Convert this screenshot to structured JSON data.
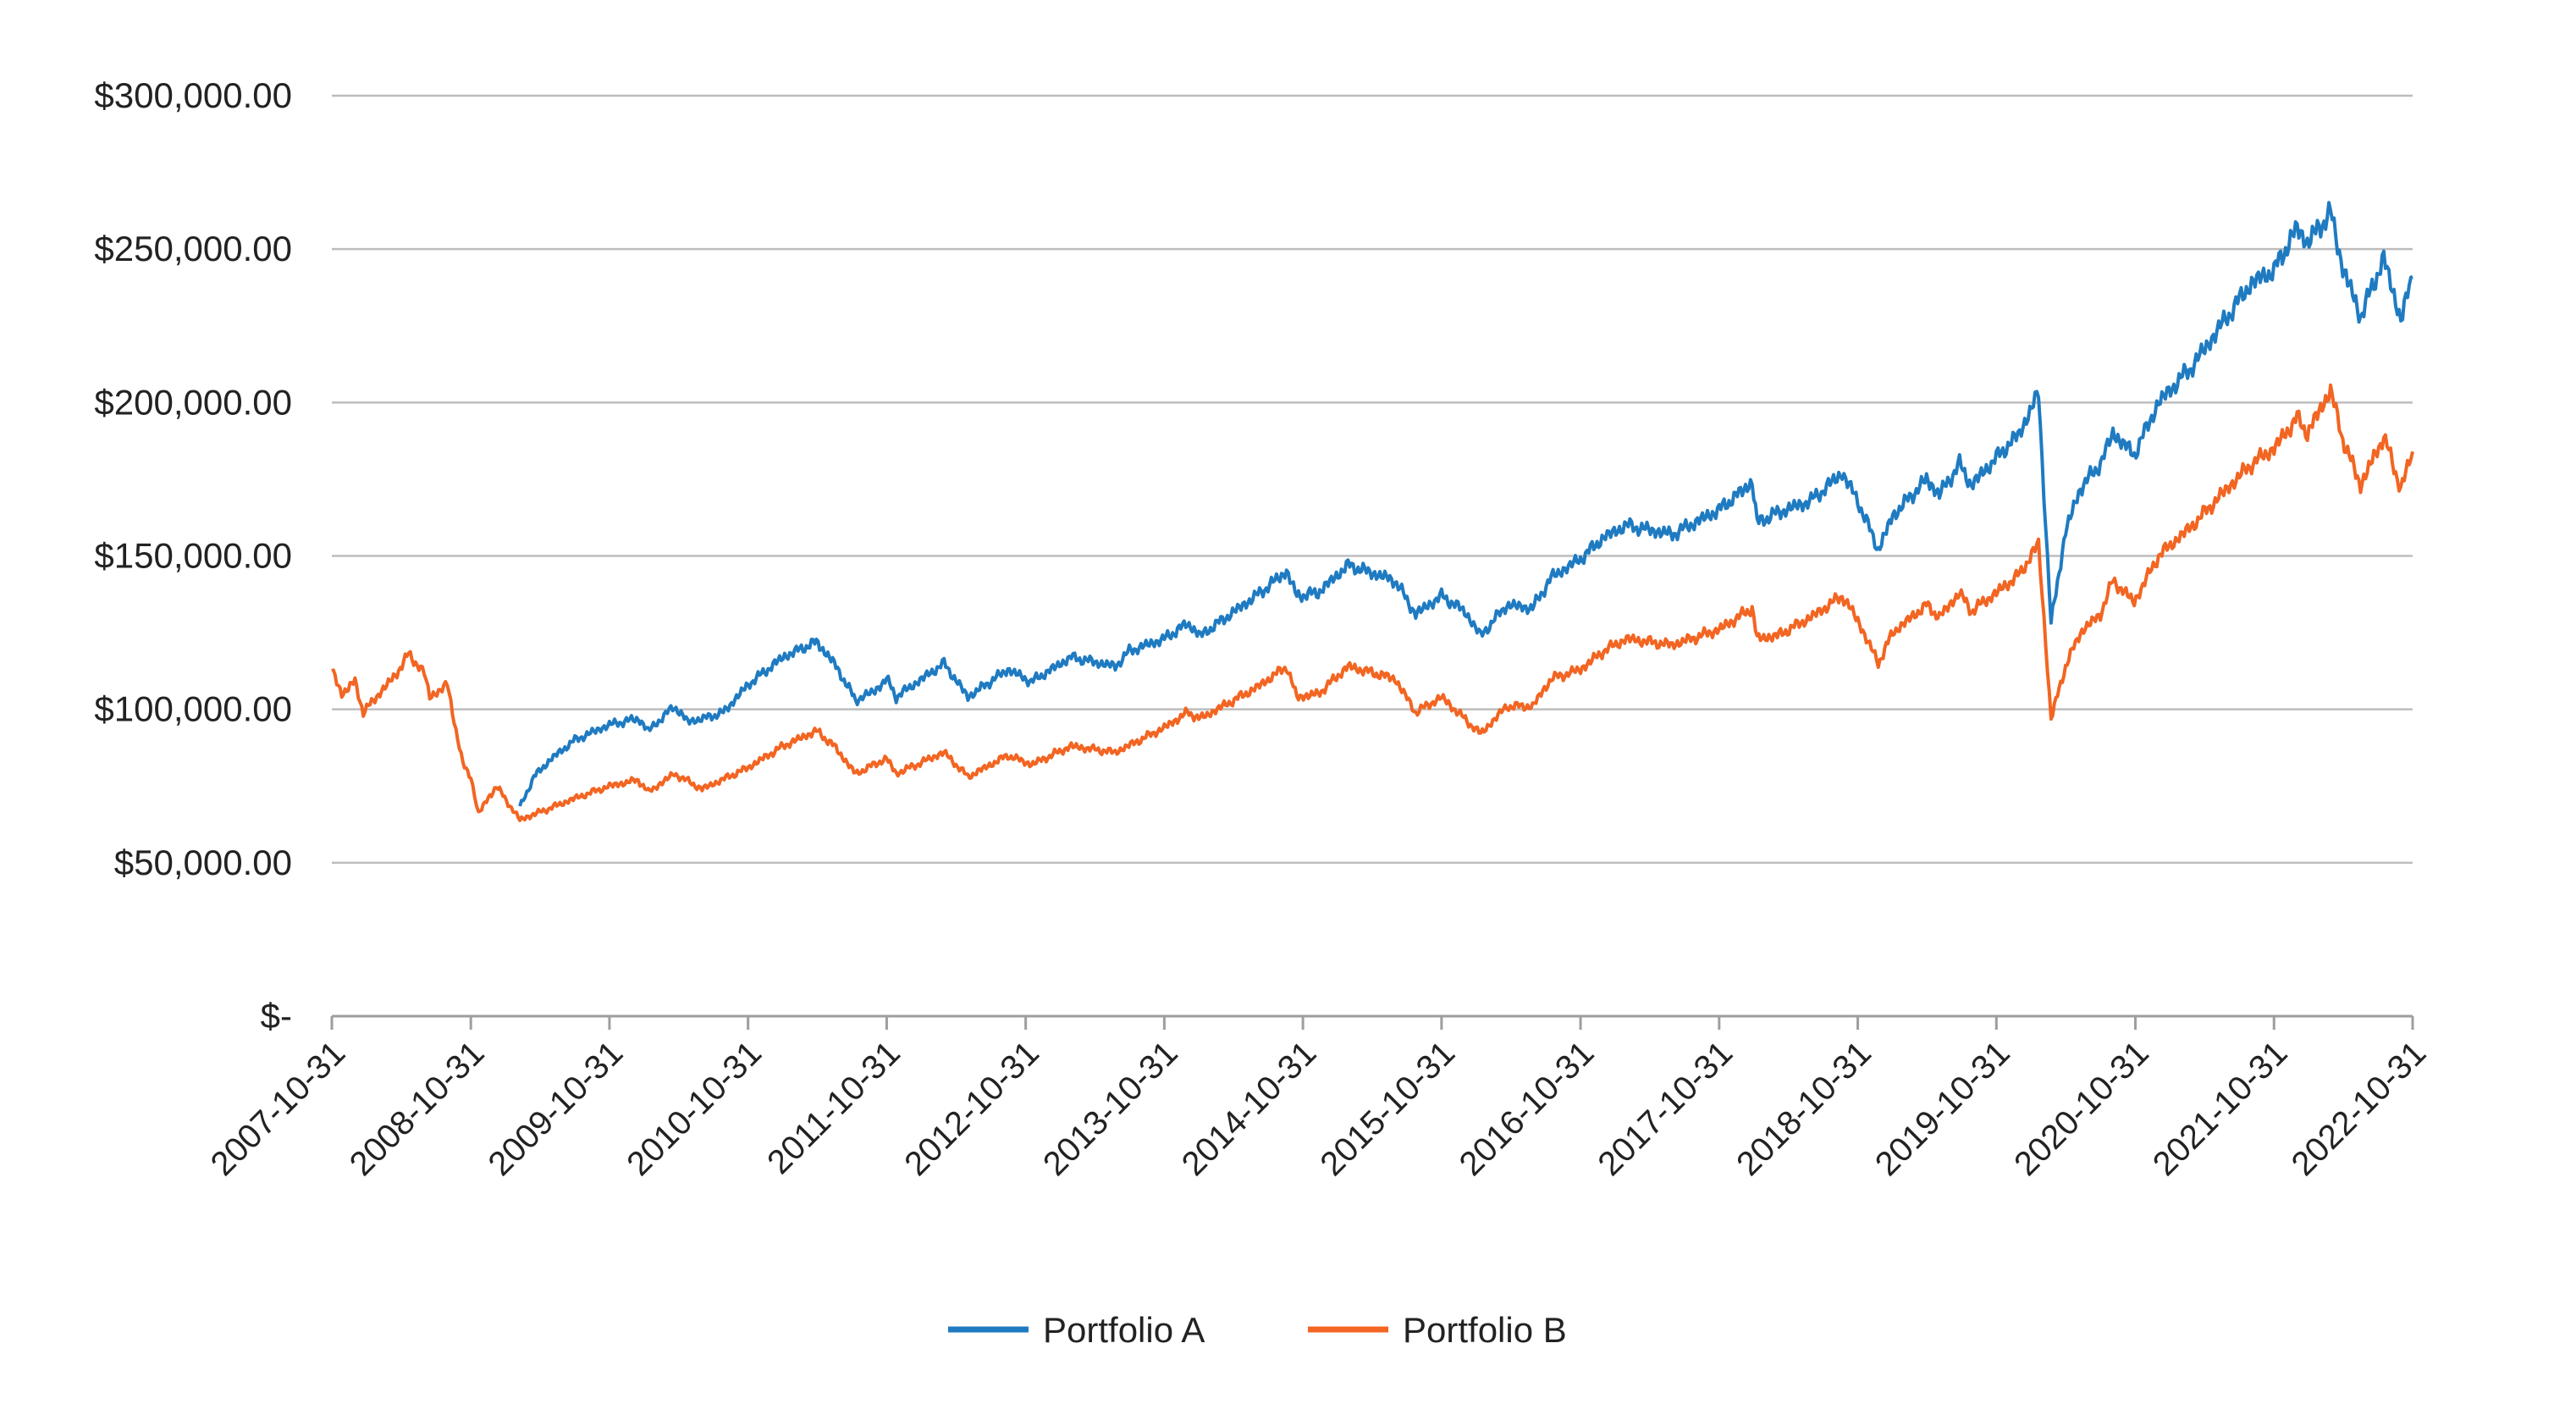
{
  "chart_data": {
    "type": "line",
    "title": "",
    "xlabel": "",
    "ylabel": "",
    "ylim": [
      0,
      300000
    ],
    "xlim": [
      "2007-10-31",
      "2022-10-31"
    ],
    "grid": true,
    "legend_position": "bottom-center",
    "y_ticks": [
      {
        "value": 0,
        "label": "$-"
      },
      {
        "value": 50000,
        "label": "$50,000.00"
      },
      {
        "value": 100000,
        "label": "$100,000.00"
      },
      {
        "value": 150000,
        "label": "$150,000.00"
      },
      {
        "value": 200000,
        "label": "$200,000.00"
      },
      {
        "value": 250000,
        "label": "$250,000.00"
      },
      {
        "value": 300000,
        "label": "$300,000.00"
      }
    ],
    "x_ticks": [
      "2007-10-31",
      "2008-10-31",
      "2009-10-31",
      "2010-10-31",
      "2011-10-31",
      "2012-10-31",
      "2013-10-31",
      "2014-10-31",
      "2015-10-31",
      "2016-10-31",
      "2017-10-31",
      "2018-10-31",
      "2019-10-31",
      "2020-10-31",
      "2021-10-31",
      "2022-10-31"
    ],
    "series": [
      {
        "name": "Portfolio A",
        "color": "#1f7bc1",
        "points": [
          [
            "2009-03-09",
            68000
          ],
          [
            "2009-04-15",
            78000
          ],
          [
            "2009-06-01",
            84000
          ],
          [
            "2009-08-01",
            90000
          ],
          [
            "2009-10-31",
            95000
          ],
          [
            "2010-01-15",
            97000
          ],
          [
            "2010-02-10",
            93000
          ],
          [
            "2010-04-20",
            101000
          ],
          [
            "2010-05-25",
            96000
          ],
          [
            "2010-07-05",
            97000
          ],
          [
            "2010-08-27",
            99000
          ],
          [
            "2010-10-31",
            108000
          ],
          [
            "2011-01-31",
            117000
          ],
          [
            "2011-04-29",
            122000
          ],
          [
            "2011-06-15",
            115000
          ],
          [
            "2011-08-10",
            103000
          ],
          [
            "2011-09-30",
            106000
          ],
          [
            "2011-10-31",
            110000
          ],
          [
            "2011-11-25",
            104000
          ],
          [
            "2012-03-30",
            115000
          ],
          [
            "2012-06-01",
            104000
          ],
          [
            "2012-09-14",
            113000
          ],
          [
            "2012-11-15",
            109000
          ],
          [
            "2013-02-28",
            117000
          ],
          [
            "2013-06-24",
            114000
          ],
          [
            "2013-07-31",
            119000
          ],
          [
            "2013-10-31",
            123000
          ],
          [
            "2013-12-31",
            128000
          ],
          [
            "2014-02-03",
            124000
          ],
          [
            "2014-06-30",
            137000
          ],
          [
            "2014-09-18",
            145000
          ],
          [
            "2014-10-15",
            137000
          ],
          [
            "2014-12-10",
            138000
          ],
          [
            "2015-02-27",
            147000
          ],
          [
            "2015-06-30",
            142000
          ],
          [
            "2015-08-24",
            131000
          ],
          [
            "2015-10-31",
            137000
          ],
          [
            "2015-12-31",
            132000
          ],
          [
            "2016-02-11",
            124000
          ],
          [
            "2016-04-20",
            134000
          ],
          [
            "2016-06-27",
            133000
          ],
          [
            "2016-08-15",
            143000
          ],
          [
            "2016-10-31",
            149000
          ],
          [
            "2016-12-31",
            156000
          ],
          [
            "2017-03-01",
            160000
          ],
          [
            "2017-06-30",
            157000
          ],
          [
            "2017-10-31",
            165000
          ],
          [
            "2018-01-26",
            174000
          ],
          [
            "2018-02-08",
            161000
          ],
          [
            "2018-04-02",
            164000
          ],
          [
            "2018-06-30",
            168000
          ],
          [
            "2018-09-20",
            177000
          ],
          [
            "2018-10-31",
            168000
          ],
          [
            "2018-12-24",
            152000
          ],
          [
            "2019-01-31",
            163000
          ],
          [
            "2019-04-30",
            175000
          ],
          [
            "2019-06-03",
            170000
          ],
          [
            "2019-07-26",
            180000
          ],
          [
            "2019-08-26",
            173000
          ],
          [
            "2019-10-31",
            182000
          ],
          [
            "2019-12-31",
            190000
          ],
          [
            "2020-02-19",
            203000
          ],
          [
            "2020-03-23",
            128000
          ],
          [
            "2020-04-30",
            158000
          ],
          [
            "2020-06-08",
            172000
          ],
          [
            "2020-07-31",
            180000
          ],
          [
            "2020-09-02",
            190000
          ],
          [
            "2020-10-28",
            183000
          ],
          [
            "2020-12-31",
            200000
          ],
          [
            "2021-03-31",
            212000
          ],
          [
            "2021-06-30",
            228000
          ],
          [
            "2021-09-02",
            239000
          ],
          [
            "2021-10-31",
            243000
          ],
          [
            "2021-12-31",
            257000
          ],
          [
            "2022-01-27",
            252000
          ],
          [
            "2022-03-29",
            262000
          ],
          [
            "2022-04-30",
            244000
          ],
          [
            "2022-06-16",
            228000
          ],
          [
            "2022-08-16",
            247000
          ],
          [
            "2022-09-30",
            227000
          ],
          [
            "2022-10-31",
            241000
          ]
        ]
      },
      {
        "name": "Portfolio B",
        "color": "#f26522",
        "points": [
          [
            "2007-10-31",
            113000
          ],
          [
            "2007-11-26",
            105000
          ],
          [
            "2007-12-31",
            109000
          ],
          [
            "2008-01-22",
            99000
          ],
          [
            "2008-03-10",
            106000
          ],
          [
            "2008-04-15",
            111000
          ],
          [
            "2008-05-20",
            118000
          ],
          [
            "2008-06-30",
            112000
          ],
          [
            "2008-07-15",
            104000
          ],
          [
            "2008-08-30",
            108000
          ],
          [
            "2008-10-10",
            82000
          ],
          [
            "2008-10-31",
            78000
          ],
          [
            "2008-11-20",
            66000
          ],
          [
            "2009-01-06",
            75000
          ],
          [
            "2009-03-09",
            64000
          ],
          [
            "2009-06-01",
            68000
          ],
          [
            "2009-08-01",
            71000
          ],
          [
            "2009-10-31",
            75000
          ],
          [
            "2010-01-15",
            77000
          ],
          [
            "2010-02-10",
            73000
          ],
          [
            "2010-04-20",
            79000
          ],
          [
            "2010-07-02",
            74000
          ],
          [
            "2010-10-31",
            81000
          ],
          [
            "2011-01-31",
            88000
          ],
          [
            "2011-04-29",
            93000
          ],
          [
            "2011-06-15",
            88000
          ],
          [
            "2011-08-10",
            79000
          ],
          [
            "2011-10-31",
            84000
          ],
          [
            "2011-11-25",
            79000
          ],
          [
            "2012-03-30",
            86000
          ],
          [
            "2012-06-01",
            78000
          ],
          [
            "2012-09-14",
            85000
          ],
          [
            "2012-11-15",
            82000
          ],
          [
            "2013-02-28",
            88000
          ],
          [
            "2013-06-24",
            86000
          ],
          [
            "2013-10-31",
            94000
          ],
          [
            "2013-12-31",
            99000
          ],
          [
            "2014-02-03",
            97000
          ],
          [
            "2014-06-30",
            107000
          ],
          [
            "2014-09-18",
            114000
          ],
          [
            "2014-10-15",
            104000
          ],
          [
            "2014-12-10",
            105000
          ],
          [
            "2015-02-27",
            114000
          ],
          [
            "2015-06-30",
            110000
          ],
          [
            "2015-08-24",
            99000
          ],
          [
            "2015-10-31",
            104000
          ],
          [
            "2016-02-11",
            92000
          ],
          [
            "2016-04-20",
            101000
          ],
          [
            "2016-06-27",
            101000
          ],
          [
            "2016-08-15",
            110000
          ],
          [
            "2016-10-31",
            113000
          ],
          [
            "2016-12-31",
            119000
          ],
          [
            "2017-03-01",
            123000
          ],
          [
            "2017-06-30",
            121000
          ],
          [
            "2017-10-31",
            126000
          ],
          [
            "2018-01-26",
            133000
          ],
          [
            "2018-02-08",
            123000
          ],
          [
            "2018-04-02",
            124000
          ],
          [
            "2018-06-30",
            130000
          ],
          [
            "2018-09-20",
            137000
          ],
          [
            "2018-10-31",
            129000
          ],
          [
            "2018-12-24",
            115000
          ],
          [
            "2019-01-31",
            125000
          ],
          [
            "2019-04-30",
            134000
          ],
          [
            "2019-06-03",
            130000
          ],
          [
            "2019-07-26",
            138000
          ],
          [
            "2019-08-26",
            132000
          ],
          [
            "2019-10-31",
            138000
          ],
          [
            "2019-12-31",
            144000
          ],
          [
            "2020-02-19",
            154000
          ],
          [
            "2020-03-23",
            97000
          ],
          [
            "2020-04-30",
            114000
          ],
          [
            "2020-06-08",
            125000
          ],
          [
            "2020-07-31",
            131000
          ],
          [
            "2020-09-02",
            142000
          ],
          [
            "2020-10-28",
            135000
          ],
          [
            "2020-12-31",
            150000
          ],
          [
            "2021-03-31",
            160000
          ],
          [
            "2021-06-30",
            172000
          ],
          [
            "2021-09-02",
            180000
          ],
          [
            "2021-10-31",
            185000
          ],
          [
            "2021-12-31",
            195000
          ],
          [
            "2022-01-27",
            190000
          ],
          [
            "2022-03-29",
            204000
          ],
          [
            "2022-04-30",
            188000
          ],
          [
            "2022-06-16",
            173000
          ],
          [
            "2022-08-16",
            189000
          ],
          [
            "2022-09-30",
            172000
          ],
          [
            "2022-10-31",
            184000
          ]
        ]
      }
    ]
  }
}
